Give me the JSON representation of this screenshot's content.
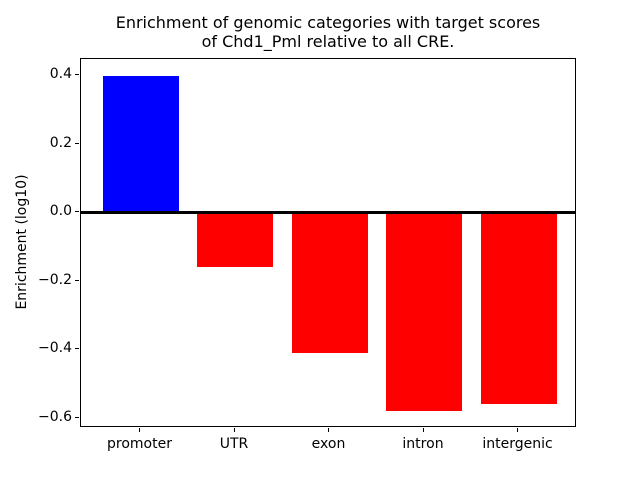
{
  "chart_data": {
    "type": "bar",
    "title": "Enrichment of genomic categories with target scores\nof Chd1_Pml relative to all CRE.",
    "xlabel": "",
    "ylabel": "Enrichment (log10)",
    "categories": [
      "promoter",
      "UTR",
      "exon",
      "intron",
      "intergenic"
    ],
    "values": [
      0.4,
      -0.16,
      -0.41,
      -0.58,
      -0.56
    ],
    "bar_colors": [
      "#0000ff",
      "#ff0000",
      "#ff0000",
      "#ff0000",
      "#ff0000"
    ],
    "positive_color": "#0000ff",
    "negative_color": "#ff0000",
    "ylim": [
      -0.629,
      0.449
    ],
    "yticks": [
      0.4,
      0.2,
      0.0,
      -0.2,
      -0.4,
      -0.6
    ],
    "ytick_labels": [
      "0.4",
      "0.2",
      "0.0",
      "−0.2",
      "−0.4",
      "−0.6"
    ],
    "grid": false,
    "legend": null,
    "zero_line": true,
    "axis_color": "#000000",
    "background_color": "#ffffff"
  }
}
